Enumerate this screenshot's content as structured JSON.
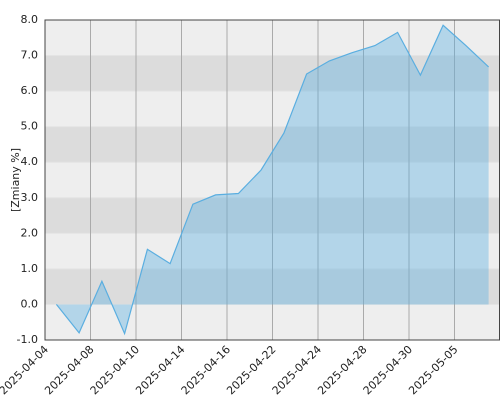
{
  "chart_data": {
    "type": "area",
    "y_label": "[Zmiany %]",
    "x": [
      0,
      1,
      2,
      3,
      4,
      5,
      6,
      7,
      8,
      9,
      10,
      11,
      12,
      13,
      14,
      15,
      16,
      17,
      18,
      19
    ],
    "series": [
      {
        "color": "#5aaee0",
        "values": [
          0.0,
          -0.8,
          0.65,
          -0.82,
          1.55,
          1.15,
          2.82,
          3.08,
          3.12,
          3.78,
          4.82,
          6.48,
          6.85,
          7.08,
          7.28,
          7.65,
          6.45,
          7.85,
          7.28,
          6.68
        ]
      }
    ],
    "xlim": [
      -0.5,
      19.5
    ],
    "xticks": [
      {
        "value": -0.5,
        "label": "2025-04-04"
      },
      {
        "value": 1.5,
        "label": "2025-04-08"
      },
      {
        "value": 3.5,
        "label": "2025-04-10"
      },
      {
        "value": 5.5,
        "label": "2025-04-14"
      },
      {
        "value": 7.5,
        "label": "2025-04-16"
      },
      {
        "value": 9.5,
        "label": "2025-04-22"
      },
      {
        "value": 11.5,
        "label": "2025-04-24"
      },
      {
        "value": 13.5,
        "label": "2025-04-28"
      },
      {
        "value": 15.5,
        "label": "2025-04-30"
      },
      {
        "value": 17.5,
        "label": "2025-05-05"
      }
    ],
    "ylim": [
      -1,
      8
    ],
    "yticks": [
      {
        "value": -1,
        "label": "-1.0"
      },
      {
        "value": 0,
        "label": "0.0"
      },
      {
        "value": 1,
        "label": "1.0"
      },
      {
        "value": 2,
        "label": "2.0"
      },
      {
        "value": 3,
        "label": "3.0"
      },
      {
        "value": 4,
        "label": "4.0"
      },
      {
        "value": 5,
        "label": "5.0"
      },
      {
        "value": 6,
        "label": "6.0"
      },
      {
        "value": 7,
        "label": "7.0"
      },
      {
        "value": 8,
        "label": "8.0"
      }
    ],
    "grid": true
  }
}
